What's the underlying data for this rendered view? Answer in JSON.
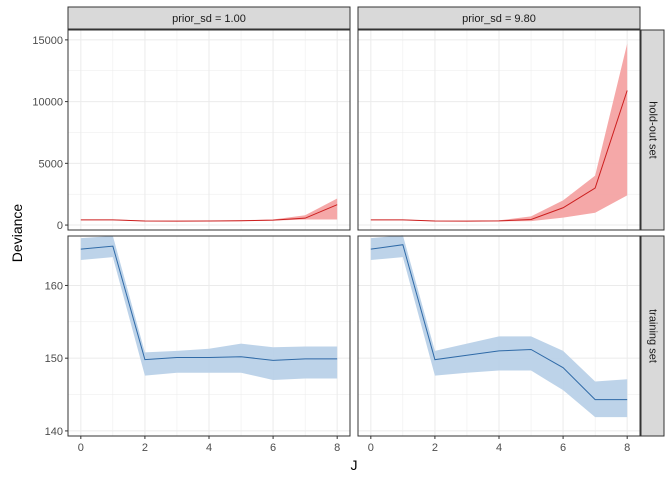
{
  "chart_data": {
    "type": "line",
    "xlabel": "J",
    "ylabel": "Deviance",
    "x": [
      0,
      1,
      2,
      3,
      4,
      5,
      6,
      7,
      8
    ],
    "x_ticks": [
      0,
      2,
      4,
      6,
      8
    ],
    "xlim": [
      -0.4,
      8.4
    ],
    "columns": [
      "prior_sd = 1.00",
      "prior_sd = 9.80"
    ],
    "rows": [
      "hold-out set",
      "training set"
    ],
    "grid": true,
    "colors": {
      "holdout_line": "#cc1f1f",
      "holdout_band": "#f4a3a3",
      "training_line": "#2f6aa7",
      "training_band": "#b9d1e8",
      "strip_fill": "#d9d9d9",
      "grid": "#ebebeb"
    },
    "panels": [
      {
        "row": "hold-out set",
        "column": "prior_sd = 1.00",
        "ylim": [
          -400,
          15800
        ],
        "y_ticks": [
          0,
          5000,
          10000,
          15000
        ],
        "mean": [
          420,
          420,
          330,
          320,
          330,
          350,
          400,
          560,
          1650
        ],
        "lower": [
          400,
          400,
          300,
          300,
          300,
          320,
          360,
          450,
          450
        ],
        "upper": [
          440,
          440,
          360,
          350,
          360,
          390,
          450,
          800,
          2150
        ]
      },
      {
        "row": "hold-out set",
        "column": "prior_sd = 9.80",
        "ylim": [
          -400,
          15800
        ],
        "y_ticks": [
          0,
          5000,
          10000,
          15000
        ],
        "mean": [
          420,
          420,
          330,
          320,
          340,
          450,
          1400,
          3000,
          10900
        ],
        "lower": [
          400,
          400,
          300,
          300,
          300,
          320,
          600,
          1000,
          2400
        ],
        "upper": [
          440,
          440,
          360,
          350,
          380,
          700,
          2000,
          4000,
          14700
        ]
      },
      {
        "row": "training set",
        "column": "prior_sd = 1.00",
        "ylim": [
          139.3,
          166.8
        ],
        "y_ticks": [
          140,
          150,
          160
        ],
        "mean": [
          165.0,
          165.4,
          149.8,
          150.1,
          150.1,
          150.2,
          149.7,
          149.9,
          149.9
        ],
        "lower": [
          163.5,
          163.9,
          147.6,
          148.0,
          148.0,
          148.0,
          147.0,
          147.2,
          147.2
        ],
        "upper": [
          166.5,
          166.8,
          150.8,
          151.0,
          151.3,
          152.0,
          151.5,
          151.6,
          151.6
        ]
      },
      {
        "row": "training set",
        "column": "prior_sd = 9.80",
        "ylim": [
          139.3,
          166.8
        ],
        "y_ticks": [
          140,
          150,
          160
        ],
        "mean": [
          165.0,
          165.6,
          149.8,
          150.4,
          151.0,
          151.2,
          148.7,
          144.3,
          144.3
        ],
        "lower": [
          163.5,
          163.9,
          147.6,
          148.0,
          148.3,
          148.3,
          145.6,
          141.9,
          141.9
        ],
        "upper": [
          166.5,
          166.9,
          151.0,
          152.0,
          153.0,
          153.0,
          151.0,
          146.8,
          147.1
        ]
      }
    ]
  }
}
